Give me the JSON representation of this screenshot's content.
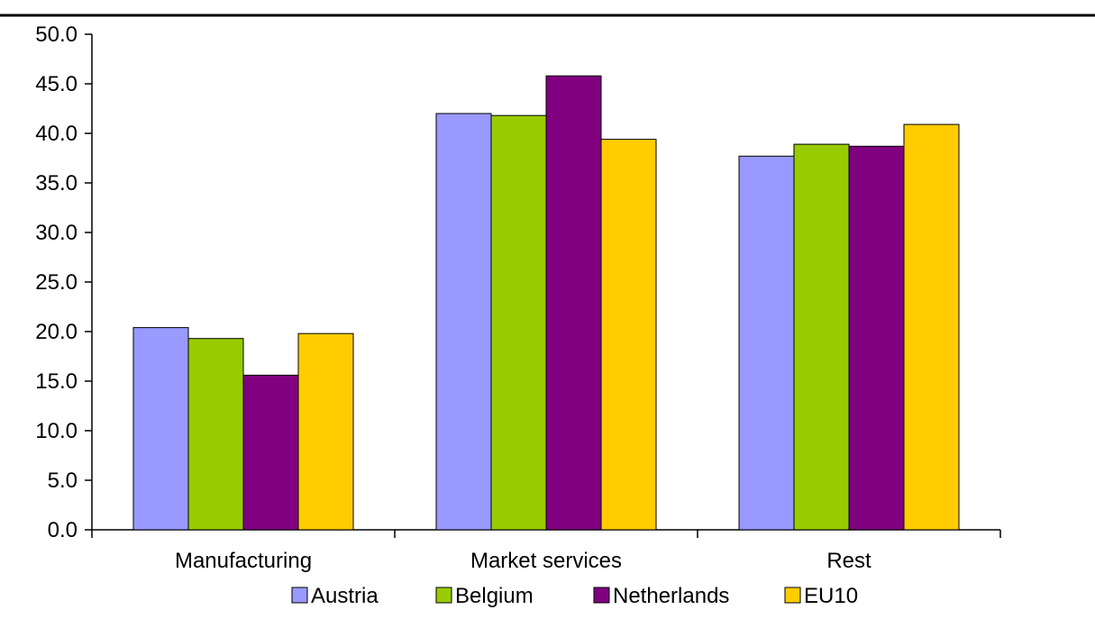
{
  "chart_data": {
    "type": "bar",
    "categories": [
      "Manufacturing",
      "Market services",
      "Rest"
    ],
    "series": [
      {
        "name": "Austria",
        "color": "#9999ff",
        "values": [
          20.4,
          42.0,
          37.7
        ]
      },
      {
        "name": "Belgium",
        "color": "#99cc00",
        "values": [
          19.3,
          41.8,
          38.9
        ]
      },
      {
        "name": "Netherlands",
        "color": "#800080",
        "values": [
          15.6,
          45.8,
          38.7
        ]
      },
      {
        "name": "EU10",
        "color": "#ffcc00",
        "values": [
          19.8,
          39.4,
          40.9
        ]
      }
    ],
    "title": "",
    "xlabel": "",
    "ylabel": "",
    "ylim": [
      0,
      50
    ],
    "yticks": [
      "0.0",
      "5.0",
      "10.0",
      "15.0",
      "20.0",
      "25.0",
      "30.0",
      "35.0",
      "40.0",
      "45.0",
      "50.0"
    ],
    "grid": false,
    "legend_position": "bottom"
  }
}
